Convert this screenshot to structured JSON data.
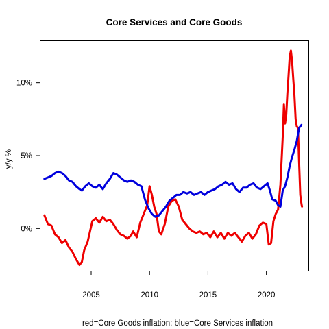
{
  "chart_data": {
    "type": "line",
    "title": "Core Services and Core Goods",
    "xlabel": "red=Core Goods inflation; blue=Core Services inflation",
    "ylabel": "y/y %",
    "xlim": [
      2000.6,
      2023.6
    ],
    "ylim": [
      -2.9,
      12.9
    ],
    "x_ticks": [
      {
        "value": 2005,
        "label": "2005"
      },
      {
        "value": 2010,
        "label": "2010"
      },
      {
        "value": 2015,
        "label": "2015"
      },
      {
        "value": 2020,
        "label": "2020"
      }
    ],
    "y_ticks": [
      {
        "value": 0,
        "label": "0%"
      },
      {
        "value": 5,
        "label": "5%"
      },
      {
        "value": 10,
        "label": "10%"
      }
    ],
    "grid": false,
    "legend": "none",
    "colors": {
      "goods": "#ee0000",
      "services": "#0000dd"
    },
    "series": [
      {
        "key": "goods",
        "color": "#ee0000",
        "points": [
          [
            2001.0,
            0.9
          ],
          [
            2001.3,
            0.3
          ],
          [
            2001.6,
            0.2
          ],
          [
            2001.9,
            -0.4
          ],
          [
            2002.2,
            -0.6
          ],
          [
            2002.5,
            -1.0
          ],
          [
            2002.8,
            -0.8
          ],
          [
            2003.1,
            -1.3
          ],
          [
            2003.4,
            -1.6
          ],
          [
            2003.7,
            -2.1
          ],
          [
            2004.0,
            -2.5
          ],
          [
            2004.2,
            -2.3
          ],
          [
            2004.4,
            -1.5
          ],
          [
            2004.7,
            -0.9
          ],
          [
            2004.9,
            -0.2
          ],
          [
            2005.1,
            0.5
          ],
          [
            2005.4,
            0.7
          ],
          [
            2005.7,
            0.4
          ],
          [
            2006.0,
            0.8
          ],
          [
            2006.3,
            0.5
          ],
          [
            2006.6,
            0.6
          ],
          [
            2006.9,
            0.3
          ],
          [
            2007.2,
            -0.1
          ],
          [
            2007.5,
            -0.4
          ],
          [
            2007.8,
            -0.5
          ],
          [
            2008.1,
            -0.7
          ],
          [
            2008.4,
            -0.5
          ],
          [
            2008.6,
            -0.2
          ],
          [
            2008.9,
            -0.6
          ],
          [
            2009.2,
            0.4
          ],
          [
            2009.5,
            1.0
          ],
          [
            2009.8,
            1.6
          ],
          [
            2010.0,
            2.9
          ],
          [
            2010.2,
            2.3
          ],
          [
            2010.4,
            1.5
          ],
          [
            2010.6,
            1.0
          ],
          [
            2010.8,
            -0.2
          ],
          [
            2011.0,
            -0.4
          ],
          [
            2011.3,
            0.3
          ],
          [
            2011.6,
            1.5
          ],
          [
            2011.9,
            1.9
          ],
          [
            2012.2,
            2.0
          ],
          [
            2012.5,
            1.5
          ],
          [
            2012.8,
            0.6
          ],
          [
            2013.1,
            0.3
          ],
          [
            2013.4,
            0.0
          ],
          [
            2013.7,
            -0.2
          ],
          [
            2014.0,
            -0.3
          ],
          [
            2014.3,
            -0.2
          ],
          [
            2014.6,
            -0.4
          ],
          [
            2014.9,
            -0.3
          ],
          [
            2015.2,
            -0.6
          ],
          [
            2015.5,
            -0.2
          ],
          [
            2015.8,
            -0.6
          ],
          [
            2016.1,
            -0.3
          ],
          [
            2016.4,
            -0.7
          ],
          [
            2016.7,
            -0.3
          ],
          [
            2017.0,
            -0.5
          ],
          [
            2017.3,
            -0.3
          ],
          [
            2017.6,
            -0.6
          ],
          [
            2017.9,
            -0.9
          ],
          [
            2018.2,
            -0.5
          ],
          [
            2018.5,
            -0.3
          ],
          [
            2018.8,
            -0.7
          ],
          [
            2019.1,
            -0.4
          ],
          [
            2019.4,
            0.2
          ],
          [
            2019.7,
            0.4
          ],
          [
            2020.0,
            0.3
          ],
          [
            2020.2,
            -1.1
          ],
          [
            2020.4,
            -1.0
          ],
          [
            2020.6,
            0.5
          ],
          [
            2020.8,
            1.0
          ],
          [
            2021.0,
            1.3
          ],
          [
            2021.2,
            3.0
          ],
          [
            2021.4,
            6.3
          ],
          [
            2021.5,
            8.5
          ],
          [
            2021.6,
            7.2
          ],
          [
            2021.7,
            7.8
          ],
          [
            2021.8,
            9.3
          ],
          [
            2021.9,
            10.5
          ],
          [
            2022.0,
            11.8
          ],
          [
            2022.1,
            12.2
          ],
          [
            2022.2,
            11.5
          ],
          [
            2022.3,
            10.3
          ],
          [
            2022.4,
            9.2
          ],
          [
            2022.5,
            7.5
          ],
          [
            2022.6,
            7.0
          ],
          [
            2022.7,
            6.9
          ],
          [
            2022.8,
            4.5
          ],
          [
            2022.9,
            2.3
          ],
          [
            2023.0,
            1.7
          ],
          [
            2023.05,
            1.5
          ]
        ]
      },
      {
        "key": "services",
        "color": "#0000dd",
        "points": [
          [
            2001.0,
            3.4
          ],
          [
            2001.3,
            3.5
          ],
          [
            2001.6,
            3.6
          ],
          [
            2001.9,
            3.8
          ],
          [
            2002.2,
            3.9
          ],
          [
            2002.5,
            3.8
          ],
          [
            2002.8,
            3.6
          ],
          [
            2003.1,
            3.3
          ],
          [
            2003.4,
            3.2
          ],
          [
            2003.7,
            2.9
          ],
          [
            2004.0,
            2.7
          ],
          [
            2004.2,
            2.6
          ],
          [
            2004.5,
            2.9
          ],
          [
            2004.8,
            3.1
          ],
          [
            2005.1,
            2.9
          ],
          [
            2005.4,
            2.8
          ],
          [
            2005.7,
            3.0
          ],
          [
            2006.0,
            2.7
          ],
          [
            2006.3,
            3.1
          ],
          [
            2006.6,
            3.4
          ],
          [
            2006.9,
            3.8
          ],
          [
            2007.2,
            3.7
          ],
          [
            2007.5,
            3.5
          ],
          [
            2007.8,
            3.3
          ],
          [
            2008.1,
            3.2
          ],
          [
            2008.4,
            3.3
          ],
          [
            2008.7,
            3.2
          ],
          [
            2009.0,
            3.0
          ],
          [
            2009.3,
            2.9
          ],
          [
            2009.6,
            2.0
          ],
          [
            2009.9,
            1.4
          ],
          [
            2010.2,
            1.0
          ],
          [
            2010.5,
            0.8
          ],
          [
            2010.8,
            0.9
          ],
          [
            2011.1,
            1.2
          ],
          [
            2011.4,
            1.5
          ],
          [
            2011.7,
            1.9
          ],
          [
            2012.0,
            2.1
          ],
          [
            2012.3,
            2.3
          ],
          [
            2012.6,
            2.3
          ],
          [
            2012.9,
            2.5
          ],
          [
            2013.2,
            2.4
          ],
          [
            2013.5,
            2.5
          ],
          [
            2013.8,
            2.3
          ],
          [
            2014.1,
            2.4
          ],
          [
            2014.4,
            2.5
          ],
          [
            2014.7,
            2.3
          ],
          [
            2015.0,
            2.5
          ],
          [
            2015.3,
            2.6
          ],
          [
            2015.6,
            2.7
          ],
          [
            2015.9,
            2.9
          ],
          [
            2016.2,
            3.0
          ],
          [
            2016.5,
            3.2
          ],
          [
            2016.8,
            3.0
          ],
          [
            2017.1,
            3.1
          ],
          [
            2017.4,
            2.7
          ],
          [
            2017.7,
            2.5
          ],
          [
            2018.0,
            2.8
          ],
          [
            2018.3,
            2.8
          ],
          [
            2018.6,
            3.0
          ],
          [
            2018.9,
            3.1
          ],
          [
            2019.2,
            2.8
          ],
          [
            2019.5,
            2.7
          ],
          [
            2019.8,
            2.9
          ],
          [
            2020.1,
            3.1
          ],
          [
            2020.3,
            2.6
          ],
          [
            2020.5,
            2.0
          ],
          [
            2020.8,
            1.9
          ],
          [
            2021.0,
            1.6
          ],
          [
            2021.2,
            1.5
          ],
          [
            2021.4,
            2.6
          ],
          [
            2021.6,
            2.9
          ],
          [
            2021.8,
            3.5
          ],
          [
            2022.0,
            4.3
          ],
          [
            2022.2,
            4.9
          ],
          [
            2022.4,
            5.4
          ],
          [
            2022.6,
            6.0
          ],
          [
            2022.8,
            6.9
          ],
          [
            2023.0,
            7.1
          ]
        ]
      }
    ]
  }
}
